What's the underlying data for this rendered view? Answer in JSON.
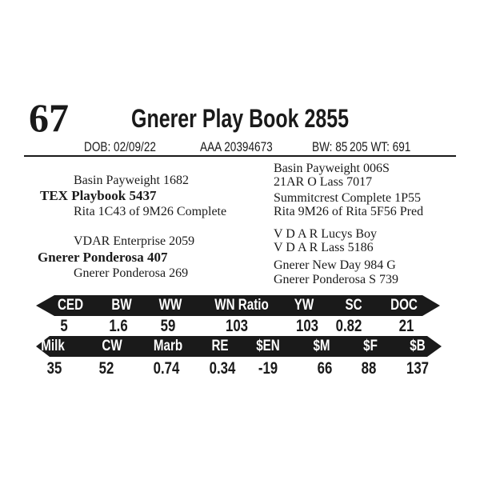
{
  "lot_number": "67",
  "animal_name": "Gnerer Play Book 2855",
  "dob": "DOB: 02/09/22",
  "registration": "AAA 20394673",
  "birth_weight": "BW: 85",
  "weaning_weight": "205 WT: 691",
  "pedigree": {
    "sire_sire": "Basin Payweight 1682",
    "sire": "TEX Playbook 5437",
    "sire_dam": "Rita 1C43 of 9M26 Complete",
    "dam_sire": "VDAR Enterprise 2059",
    "dam": "Gnerer Ponderosa 407",
    "dam_dam": "Gnerer Ponderosa 269",
    "sire_sire_sire": "Basin Payweight 006S",
    "sire_sire_dam": "21AR O Lass 7017",
    "sire_dam_sire": "Summitcrest Complete 1P55",
    "sire_dam_dam": "Rita 9M26 of Rita 5F56 Pred",
    "dam_sire_sire": "V D A R Lucys Boy",
    "dam_sire_dam": "V D A R Lass 5186",
    "dam_dam_sire": "Gnerer New Day 984 G",
    "dam_dam_dam": "Gnerer Ponderosa S 739"
  },
  "epd_row1": {
    "headers": [
      "CED",
      "BW",
      "WW",
      "WN Ratio",
      "YW",
      "SC",
      "DOC"
    ],
    "values": [
      "5",
      "1.6",
      "59",
      "103",
      "103",
      "0.82",
      "21"
    ]
  },
  "epd_row2": {
    "headers": [
      "Milk",
      "CW",
      "Marb",
      "RE",
      "$EN",
      "$M",
      "$F",
      "$B"
    ],
    "values": [
      "35",
      "52",
      "0.74",
      "0.34",
      "-19",
      "66",
      "88",
      "137"
    ]
  },
  "colors": {
    "bar": "#1a1a1a",
    "text": "#1a1a1a"
  }
}
